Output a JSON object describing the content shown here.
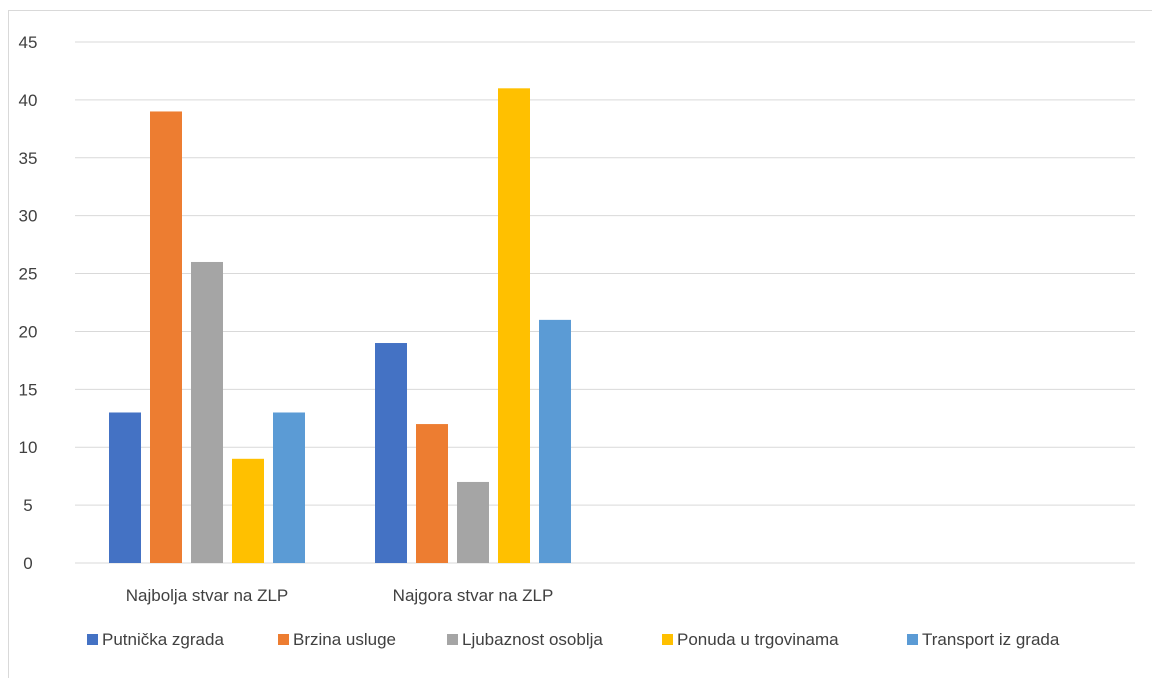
{
  "chart_data": {
    "type": "bar",
    "title": "",
    "xlabel": "",
    "ylabel": "",
    "ylim": [
      0,
      45
    ],
    "yticks": [
      0,
      5,
      10,
      15,
      20,
      25,
      30,
      35,
      40,
      45
    ],
    "grid": true,
    "legend_position": "bottom",
    "categories": [
      "Najbolja stvar na ZLP",
      "Najgora stvar na ZLP"
    ],
    "series": [
      {
        "name": "Putnička zgrada",
        "color": "#4472c4",
        "values": [
          13,
          19
        ]
      },
      {
        "name": "Brzina usluge",
        "color": "#ed7d31",
        "values": [
          39,
          12
        ]
      },
      {
        "name": "Ljubaznost osoblja",
        "color": "#a5a5a5",
        "values": [
          26,
          7
        ]
      },
      {
        "name": "Ponuda u trgovinama",
        "color": "#ffc000",
        "values": [
          9,
          41
        ]
      },
      {
        "name": "Transport iz grada",
        "color": "#5b9bd5",
        "values": [
          13,
          21
        ]
      }
    ]
  }
}
